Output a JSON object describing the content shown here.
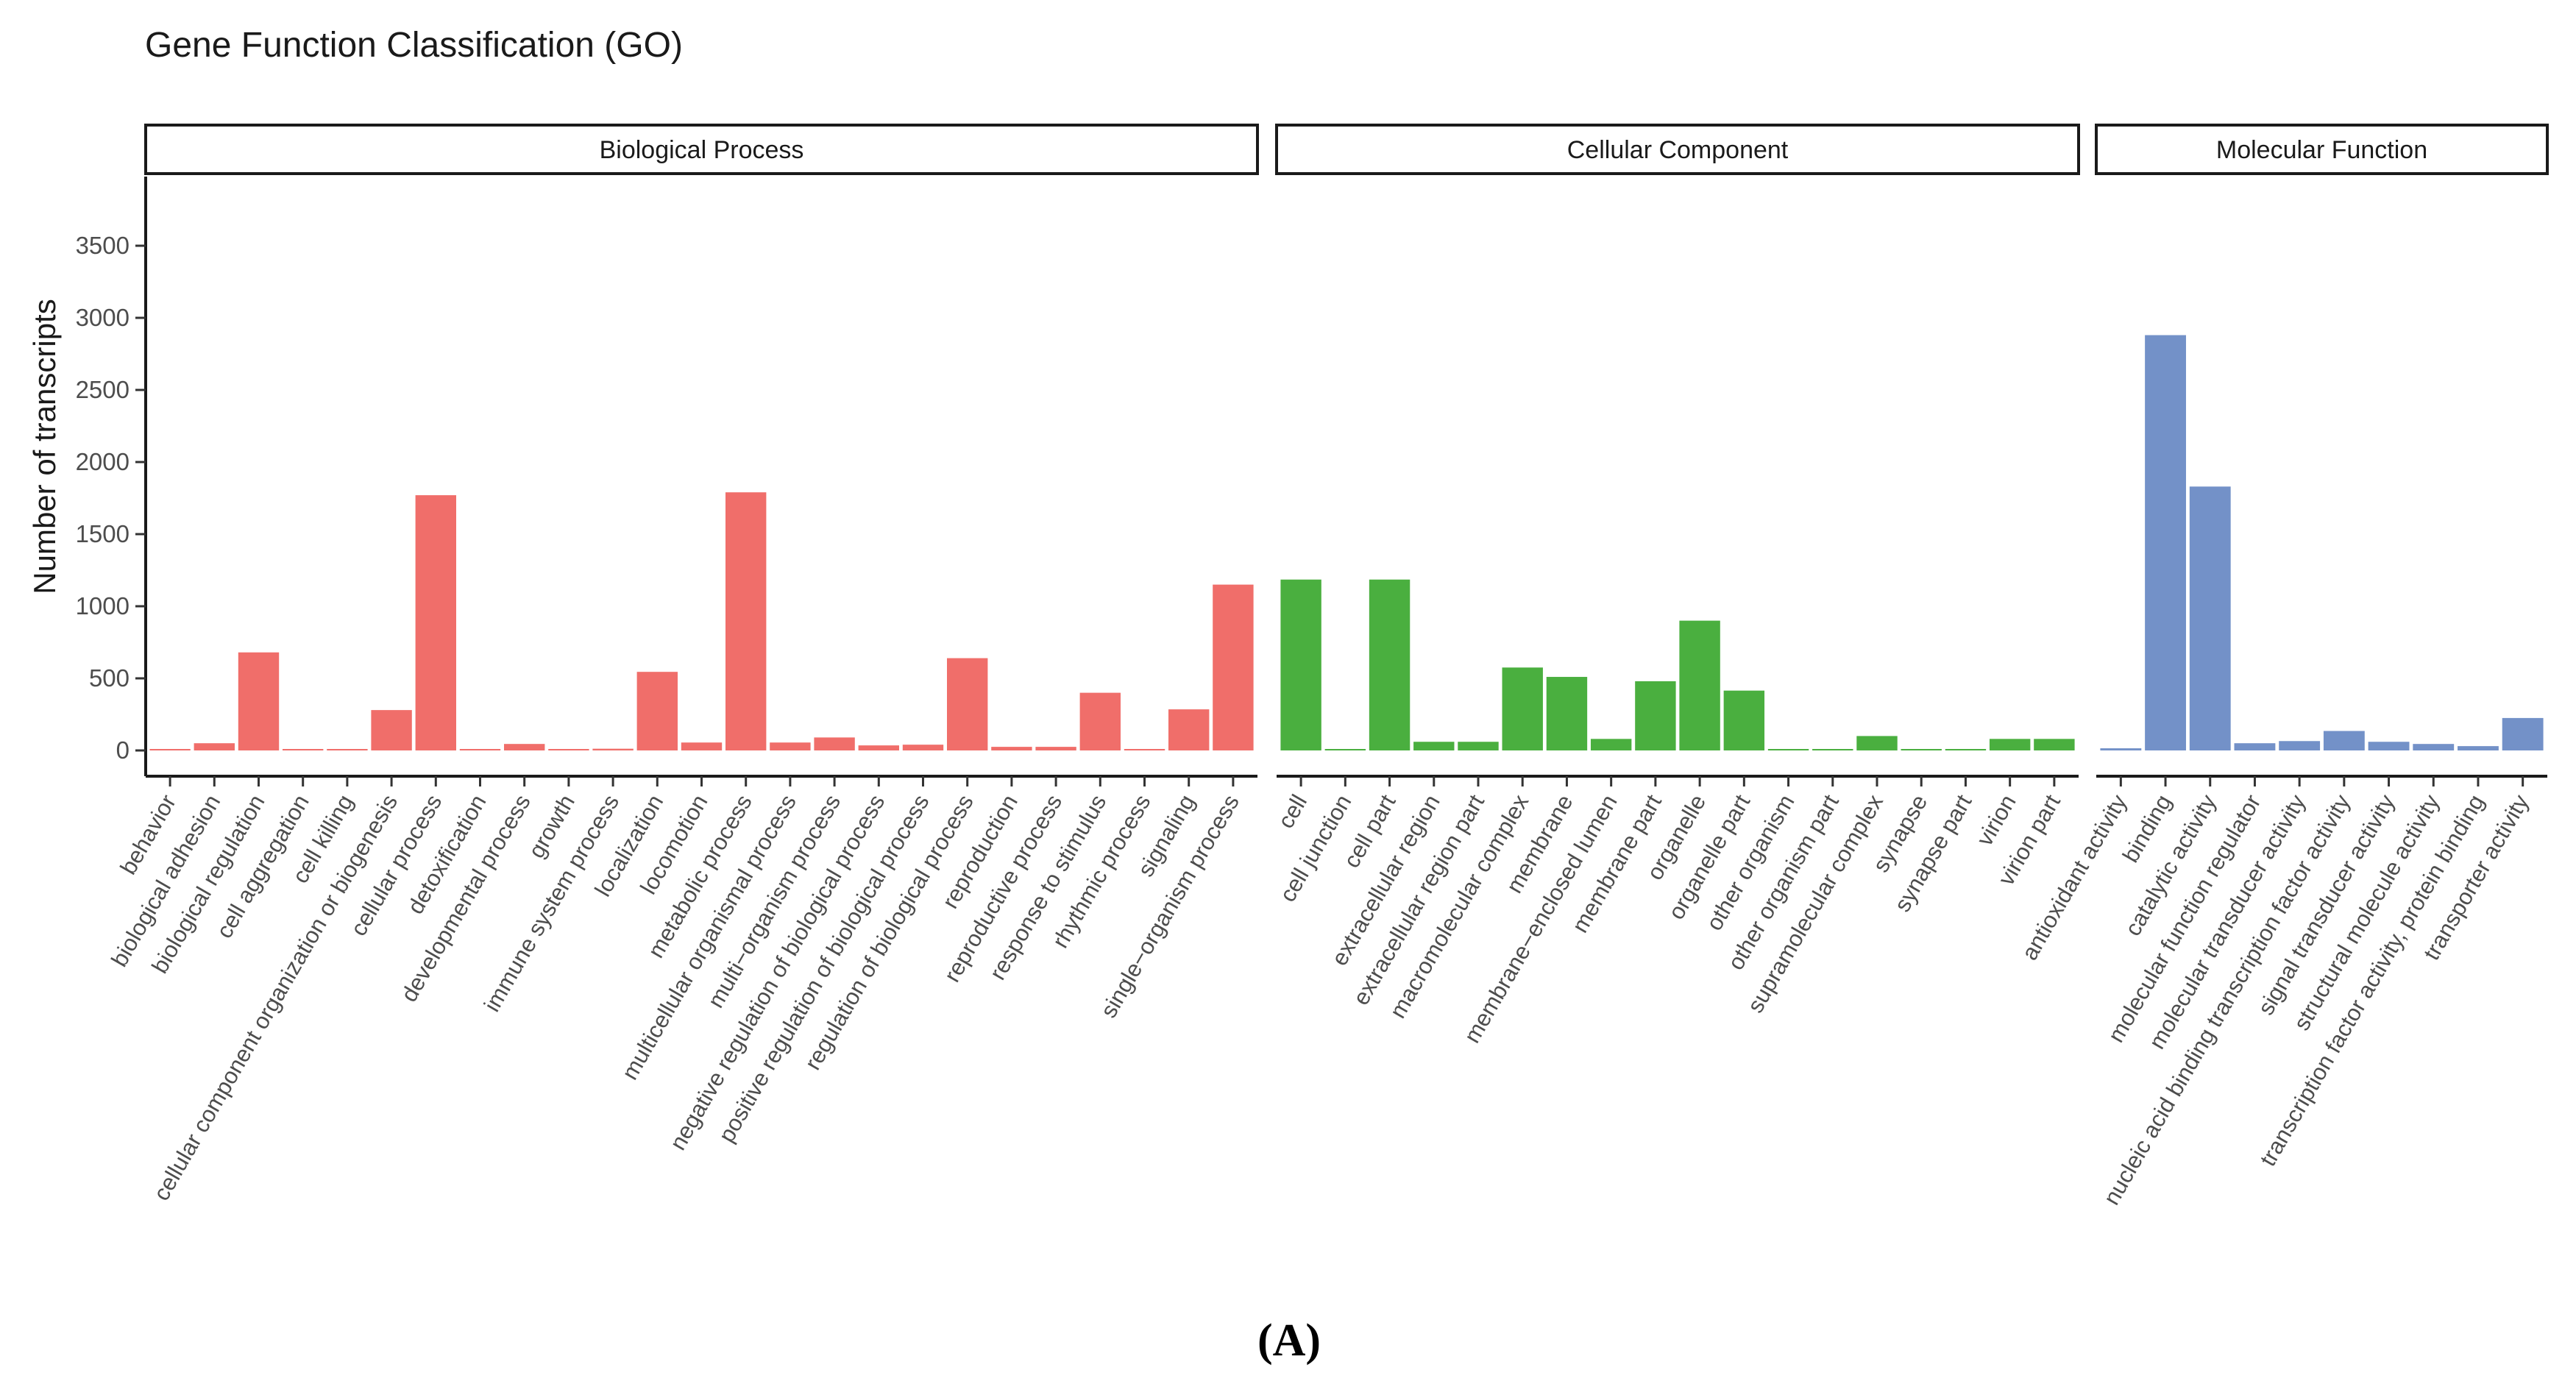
{
  "chart_data": {
    "type": "bar",
    "title": "Gene Function Classification (GO)",
    "ylabel": "Number of transcripts",
    "xlabel": "",
    "ylim": [
      0,
      3800
    ],
    "yticks": [
      0,
      500,
      1000,
      1500,
      2000,
      2500,
      3000,
      3500
    ],
    "grid": false,
    "figure_label": "(A)",
    "panels": [
      {
        "name": "Biological Process",
        "color": "#F06E6A",
        "categories": [
          "behavior",
          "biological adhesion",
          "biological regulation",
          "cell aggregation",
          "cell killing",
          "cellular component organization or biogenesis",
          "cellular process",
          "detoxification",
          "developmental process",
          "growth",
          "immune system process",
          "localization",
          "locomotion",
          "metabolic process",
          "multicellular organismal process",
          "multi−organism process",
          "negative regulation of biological process",
          "positive regulation of biological process",
          "regulation of biological process",
          "reproduction",
          "reproductive process",
          "response to stimulus",
          "rhythmic process",
          "signaling",
          "single−organism process"
        ],
        "values": [
          2,
          50,
          680,
          3,
          5,
          280,
          1770,
          5,
          45,
          8,
          12,
          545,
          55,
          1790,
          55,
          90,
          35,
          40,
          640,
          25,
          25,
          400,
          5,
          285,
          1150
        ]
      },
      {
        "name": "Cellular Component",
        "color": "#4AAF3F",
        "categories": [
          "cell",
          "cell junction",
          "cell part",
          "extracellular region",
          "extracellular region part",
          "macromolecular complex",
          "membrane",
          "membrane−enclosed lumen",
          "membrane part",
          "organelle",
          "organelle part",
          "other organism",
          "other organism part",
          "supramolecular complex",
          "synapse",
          "synapse part",
          "virion",
          "virion part"
        ],
        "values": [
          1185,
          10,
          1185,
          60,
          60,
          575,
          510,
          80,
          480,
          900,
          415,
          3,
          3,
          100,
          3,
          3,
          80,
          80
        ]
      },
      {
        "name": "Molecular Function",
        "color": "#7391C8",
        "categories": [
          "antioxidant activity",
          "binding",
          "catalytic activity",
          "molecular function regulator",
          "molecular transducer activity",
          "nucleic acid binding transcription factor activity",
          "signal transducer activity",
          "structural molecule activity",
          "transcription factor activity, protein binding",
          "transporter activity"
        ],
        "values": [
          15,
          2880,
          1830,
          50,
          65,
          135,
          60,
          45,
          30,
          225
        ]
      }
    ]
  }
}
